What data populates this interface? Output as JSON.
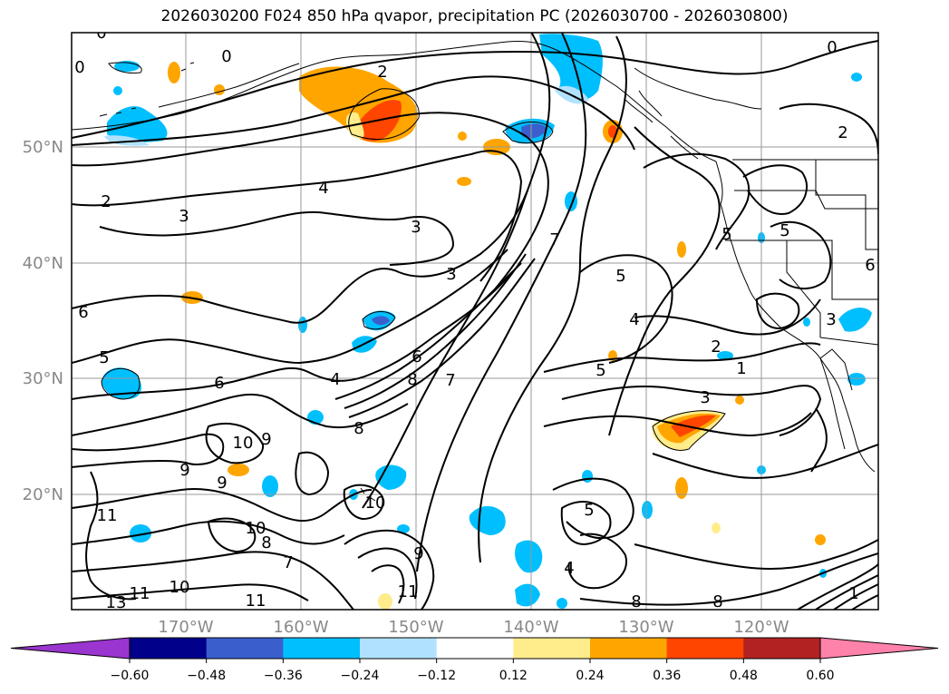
{
  "title": "2026030200 F024 850 hPa qvapor, precipitation PC (2026030700 - 2026030800)",
  "map": {
    "lat_labels": [
      "50°N",
      "40°N",
      "30°N",
      "20°N"
    ],
    "lon_labels": [
      "170°W",
      "160°W",
      "150°W",
      "140°W",
      "130°W",
      "120°W"
    ],
    "label_color": "#888888",
    "contour_labels": [
      {
        "text": "0"
      },
      {
        "text": "0"
      },
      {
        "text": "0"
      },
      {
        "text": "0"
      },
      {
        "text": "2"
      },
      {
        "text": "2"
      },
      {
        "text": "2"
      },
      {
        "text": "2"
      },
      {
        "text": "3"
      },
      {
        "text": "3"
      },
      {
        "text": "3"
      },
      {
        "text": "3"
      },
      {
        "text": "3"
      },
      {
        "text": "4"
      },
      {
        "text": "4"
      },
      {
        "text": "4"
      },
      {
        "text": "5"
      },
      {
        "text": "5"
      },
      {
        "text": "5"
      },
      {
        "text": "5"
      },
      {
        "text": "5"
      },
      {
        "text": "5"
      },
      {
        "text": "6"
      },
      {
        "text": "6"
      },
      {
        "text": "6"
      },
      {
        "text": "6"
      },
      {
        "text": "7"
      },
      {
        "text": "7"
      },
      {
        "text": "7"
      },
      {
        "text": "8"
      },
      {
        "text": "8"
      },
      {
        "text": "8"
      },
      {
        "text": "8"
      },
      {
        "text": "9"
      },
      {
        "text": "9"
      },
      {
        "text": "9"
      },
      {
        "text": "9"
      },
      {
        "text": "10"
      },
      {
        "text": "10"
      },
      {
        "text": "10"
      },
      {
        "text": "10"
      },
      {
        "text": "11"
      },
      {
        "text": "11"
      },
      {
        "text": "11"
      },
      {
        "text": "11"
      },
      {
        "text": "13"
      },
      {
        "text": "1"
      },
      {
        "text": "1"
      },
      {
        "text": "8"
      },
      {
        "text": "4"
      }
    ]
  },
  "colorbar": {
    "colors": [
      "#9a35cf",
      "#00008b",
      "#3a5fcd",
      "#00bfff",
      "#b0e2ff",
      "#ffffff",
      "#ffec8b",
      "#ffa500",
      "#ff4500",
      "#b22222",
      "#ff82ab"
    ],
    "tick_labels": [
      "−0.60",
      "−0.48",
      "−0.36",
      "−0.24",
      "−0.12",
      "0.12",
      "0.24",
      "0.36",
      "0.48",
      "0.60"
    ]
  }
}
